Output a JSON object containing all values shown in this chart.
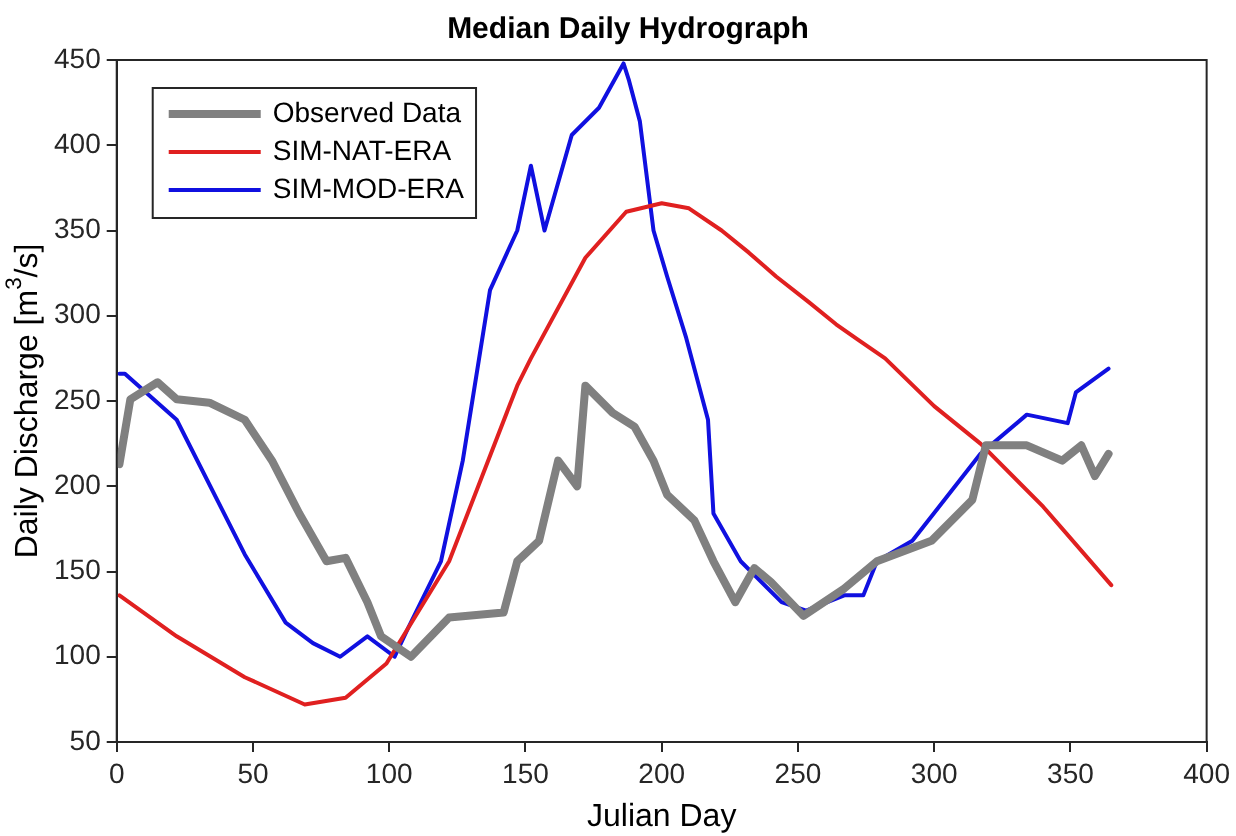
{
  "chart_data": {
    "type": "line",
    "title": "Median Daily Hydrograph",
    "xlabel": "Julian Day",
    "ylabel": "Daily Discharge [m$^{3}$/s]",
    "xlim": [
      0,
      400
    ],
    "xticks": [
      0,
      50,
      100,
      150,
      200,
      250,
      300,
      350,
      400
    ],
    "ylim": [
      50,
      450
    ],
    "yticks": [
      50,
      100,
      150,
      200,
      250,
      300,
      350,
      400,
      450
    ],
    "grid": false,
    "legend": "top left",
    "marker": "none",
    "line_style": "solid",
    "series": [
      {
        "name": "Observed Data",
        "color": "#808080",
        "x": [
          1,
          5,
          15,
          22,
          34,
          47,
          57,
          67,
          77,
          84,
          92,
          97,
          108,
          122,
          142,
          147,
          155,
          162,
          169,
          172,
          182,
          190,
          197,
          202,
          212,
          219,
          227,
          234,
          240,
          252,
          267,
          279,
          299,
          314,
          319,
          334,
          347,
          354,
          359,
          364
        ],
        "values": [
          213,
          251,
          261,
          251,
          249,
          239,
          215,
          184,
          156,
          158,
          132,
          112,
          100,
          123,
          126,
          156,
          168,
          215,
          200,
          259,
          243,
          235,
          215,
          195,
          180,
          156,
          132,
          152,
          144,
          124,
          140,
          156,
          168,
          192,
          224,
          224,
          215,
          224,
          206,
          219
        ]
      },
      {
        "name": "SIM-NAT-ERA",
        "color": "#e02020",
        "x": [
          1,
          22,
          47,
          69,
          84,
          99,
          122,
          147,
          152,
          172,
          187,
          200,
          210,
          222,
          232,
          242,
          254,
          264,
          272,
          282,
          300,
          317,
          340,
          365
        ],
        "values": [
          136,
          112,
          88,
          72,
          76,
          96,
          156,
          259,
          275,
          334,
          361,
          366,
          363,
          350,
          337,
          323,
          308,
          295,
          286,
          275,
          247,
          225,
          188,
          142
        ]
      },
      {
        "name": "SIM-MOD-ERA",
        "color": "#1010e0",
        "x": [
          1,
          3,
          22,
          47,
          62,
          72,
          82,
          92,
          102,
          107,
          119,
          127,
          133,
          137,
          147,
          152,
          157,
          167,
          177,
          186,
          188,
          192,
          197,
          202,
          209,
          217,
          219,
          229,
          244,
          253,
          267,
          274,
          279,
          292,
          317,
          334,
          349,
          352,
          364
        ],
        "values": [
          266,
          266,
          239,
          160,
          120,
          108,
          100,
          112,
          100,
          117,
          156,
          215,
          275,
          315,
          350,
          388,
          350,
          406,
          422,
          448,
          438,
          414,
          350,
          323,
          287,
          239,
          184,
          156,
          132,
          127,
          136,
          136,
          156,
          168,
          219,
          242,
          237,
          255,
          269
        ]
      }
    ]
  }
}
